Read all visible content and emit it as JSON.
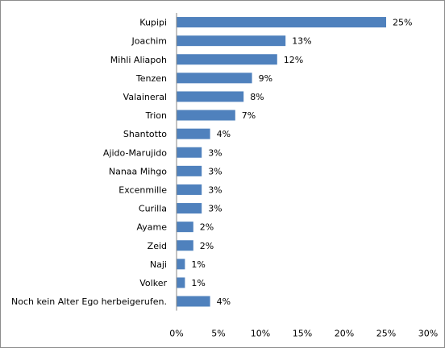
{
  "chart_data": {
    "type": "bar",
    "orientation": "horizontal",
    "categories": [
      "Kupipi",
      "Joachim",
      "Mihli Aliapoh",
      "Tenzen",
      "Valaineral",
      "Trion",
      "Shantotto",
      "Ajido-Marujido",
      "Nanaa Mihgo",
      "Excenmille",
      "Curilla",
      "Ayame",
      "Zeid",
      "Naji",
      "Volker",
      "Noch kein Alter Ego herbeigerufen."
    ],
    "values": [
      25,
      13,
      12,
      9,
      8,
      7,
      4,
      3,
      3,
      3,
      3,
      2,
      2,
      1,
      1,
      4
    ],
    "value_labels": [
      "25%",
      "13%",
      "12%",
      "9%",
      "8%",
      "7%",
      "4%",
      "3%",
      "3%",
      "3%",
      "3%",
      "2%",
      "2%",
      "1%",
      "1%",
      "4%"
    ],
    "x_ticks": [
      "0%",
      "5%",
      "10%",
      "15%",
      "20%",
      "25%",
      "30%"
    ],
    "xlim": [
      0,
      30
    ],
    "grid": false,
    "legend": "none",
    "bar_color": "#4f81bd"
  }
}
